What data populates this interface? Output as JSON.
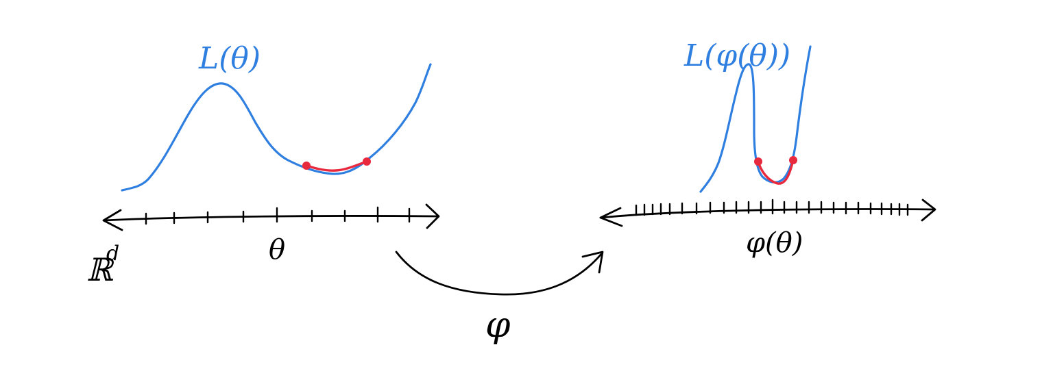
{
  "left_panel": {
    "curve_label": "L(θ)",
    "axis_label": "θ",
    "space_label": "ℝ",
    "space_superscript": "d"
  },
  "right_panel": {
    "curve_label": "L(φ(θ))",
    "axis_label": "φ(θ)"
  },
  "mapping": {
    "label": "φ"
  },
  "colors": {
    "curve": "#2f7fe0",
    "highlight": "#e8283c",
    "ink": "#000000",
    "background": "#ffffff"
  }
}
